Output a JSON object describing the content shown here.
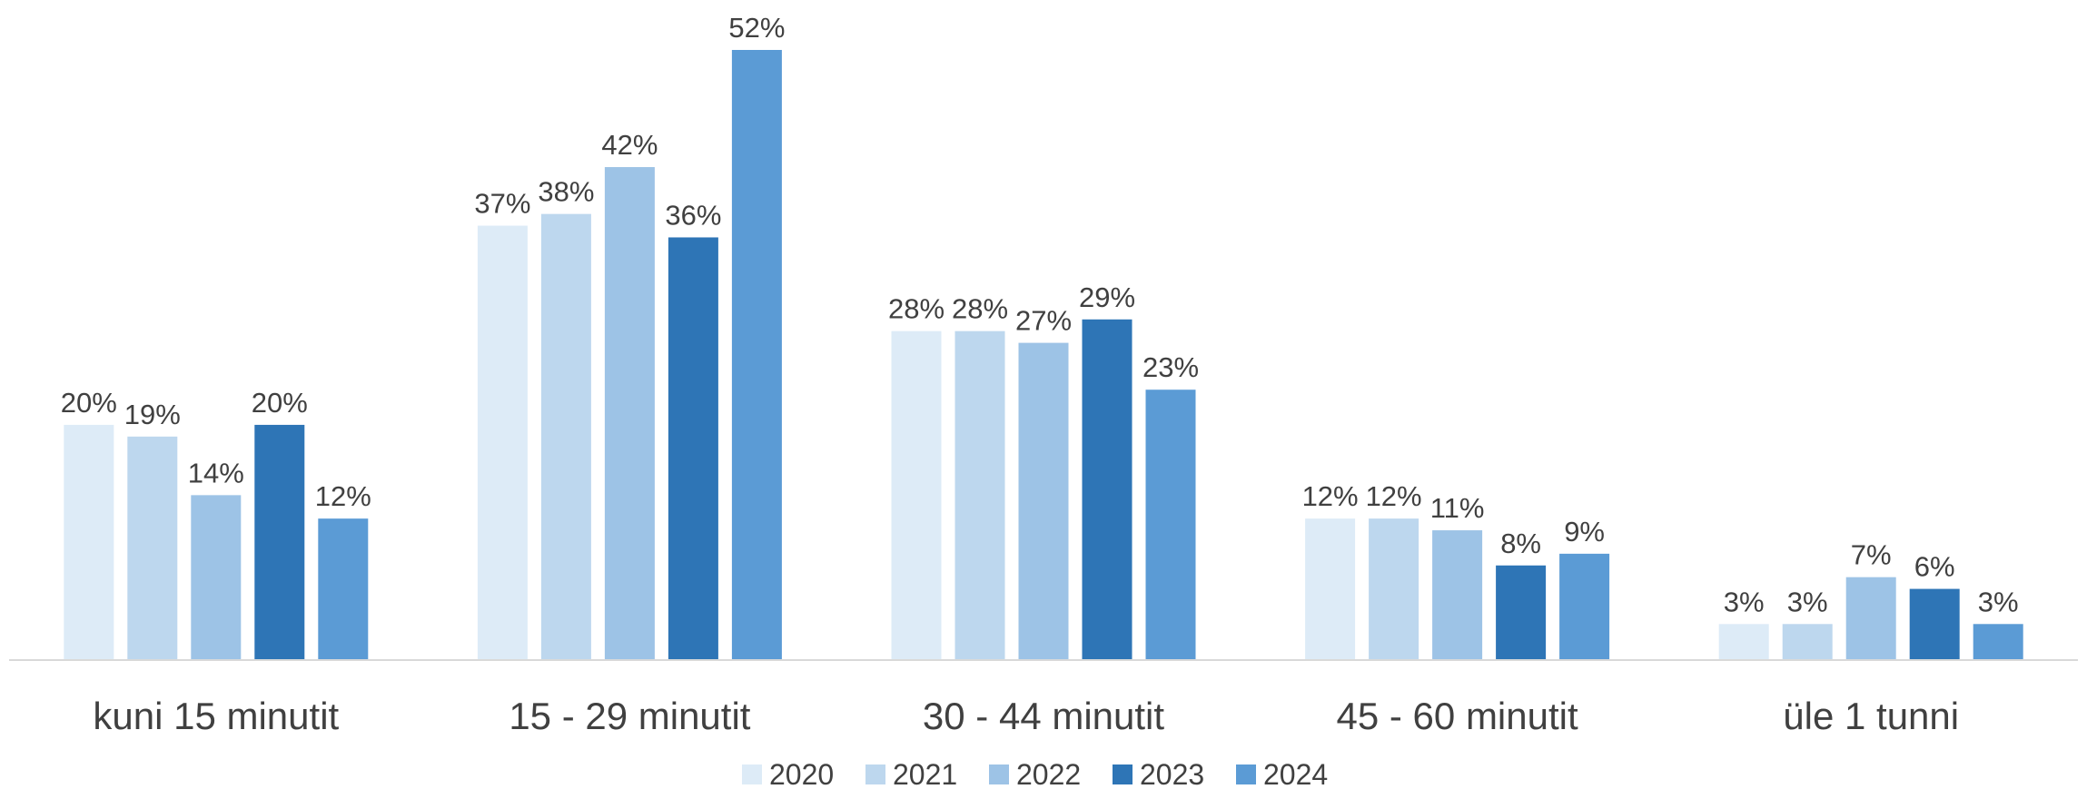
{
  "chart_data": {
    "type": "bar",
    "categories": [
      "kuni 15 minutit",
      "15 - 29 minutit",
      "30 - 44 minutit",
      "45 - 60 minutit",
      "üle 1 tunni"
    ],
    "series": [
      {
        "name": "2020",
        "color": "#DDEBF7",
        "values": [
          20,
          37,
          28,
          12,
          3
        ],
        "labels": [
          "20%",
          "37%",
          "28%",
          "12%",
          "3%"
        ]
      },
      {
        "name": "2021",
        "color": "#BDD7EE",
        "values": [
          19,
          38,
          28,
          12,
          3
        ],
        "labels": [
          "19%",
          "38%",
          "28%",
          "12%",
          "3%"
        ]
      },
      {
        "name": "2022",
        "color": "#9DC3E6",
        "values": [
          14,
          42,
          27,
          11,
          7
        ],
        "labels": [
          "14%",
          "42%",
          "27%",
          "11%",
          "7%"
        ]
      },
      {
        "name": "2023",
        "color": "#2E75B6",
        "values": [
          20,
          36,
          29,
          8,
          6
        ],
        "labels": [
          "20%",
          "36%",
          "29%",
          "8%",
          "6%"
        ]
      },
      {
        "name": "2024",
        "color": "#5B9BD5",
        "values": [
          12,
          52,
          23,
          9,
          3
        ],
        "labels": [
          "12%",
          "52%",
          "23%",
          "9%",
          "3%"
        ]
      }
    ],
    "ylim": [
      0,
      52
    ],
    "grid": false,
    "legend": "bottom-center",
    "axis_color": "#D9D9D9"
  }
}
